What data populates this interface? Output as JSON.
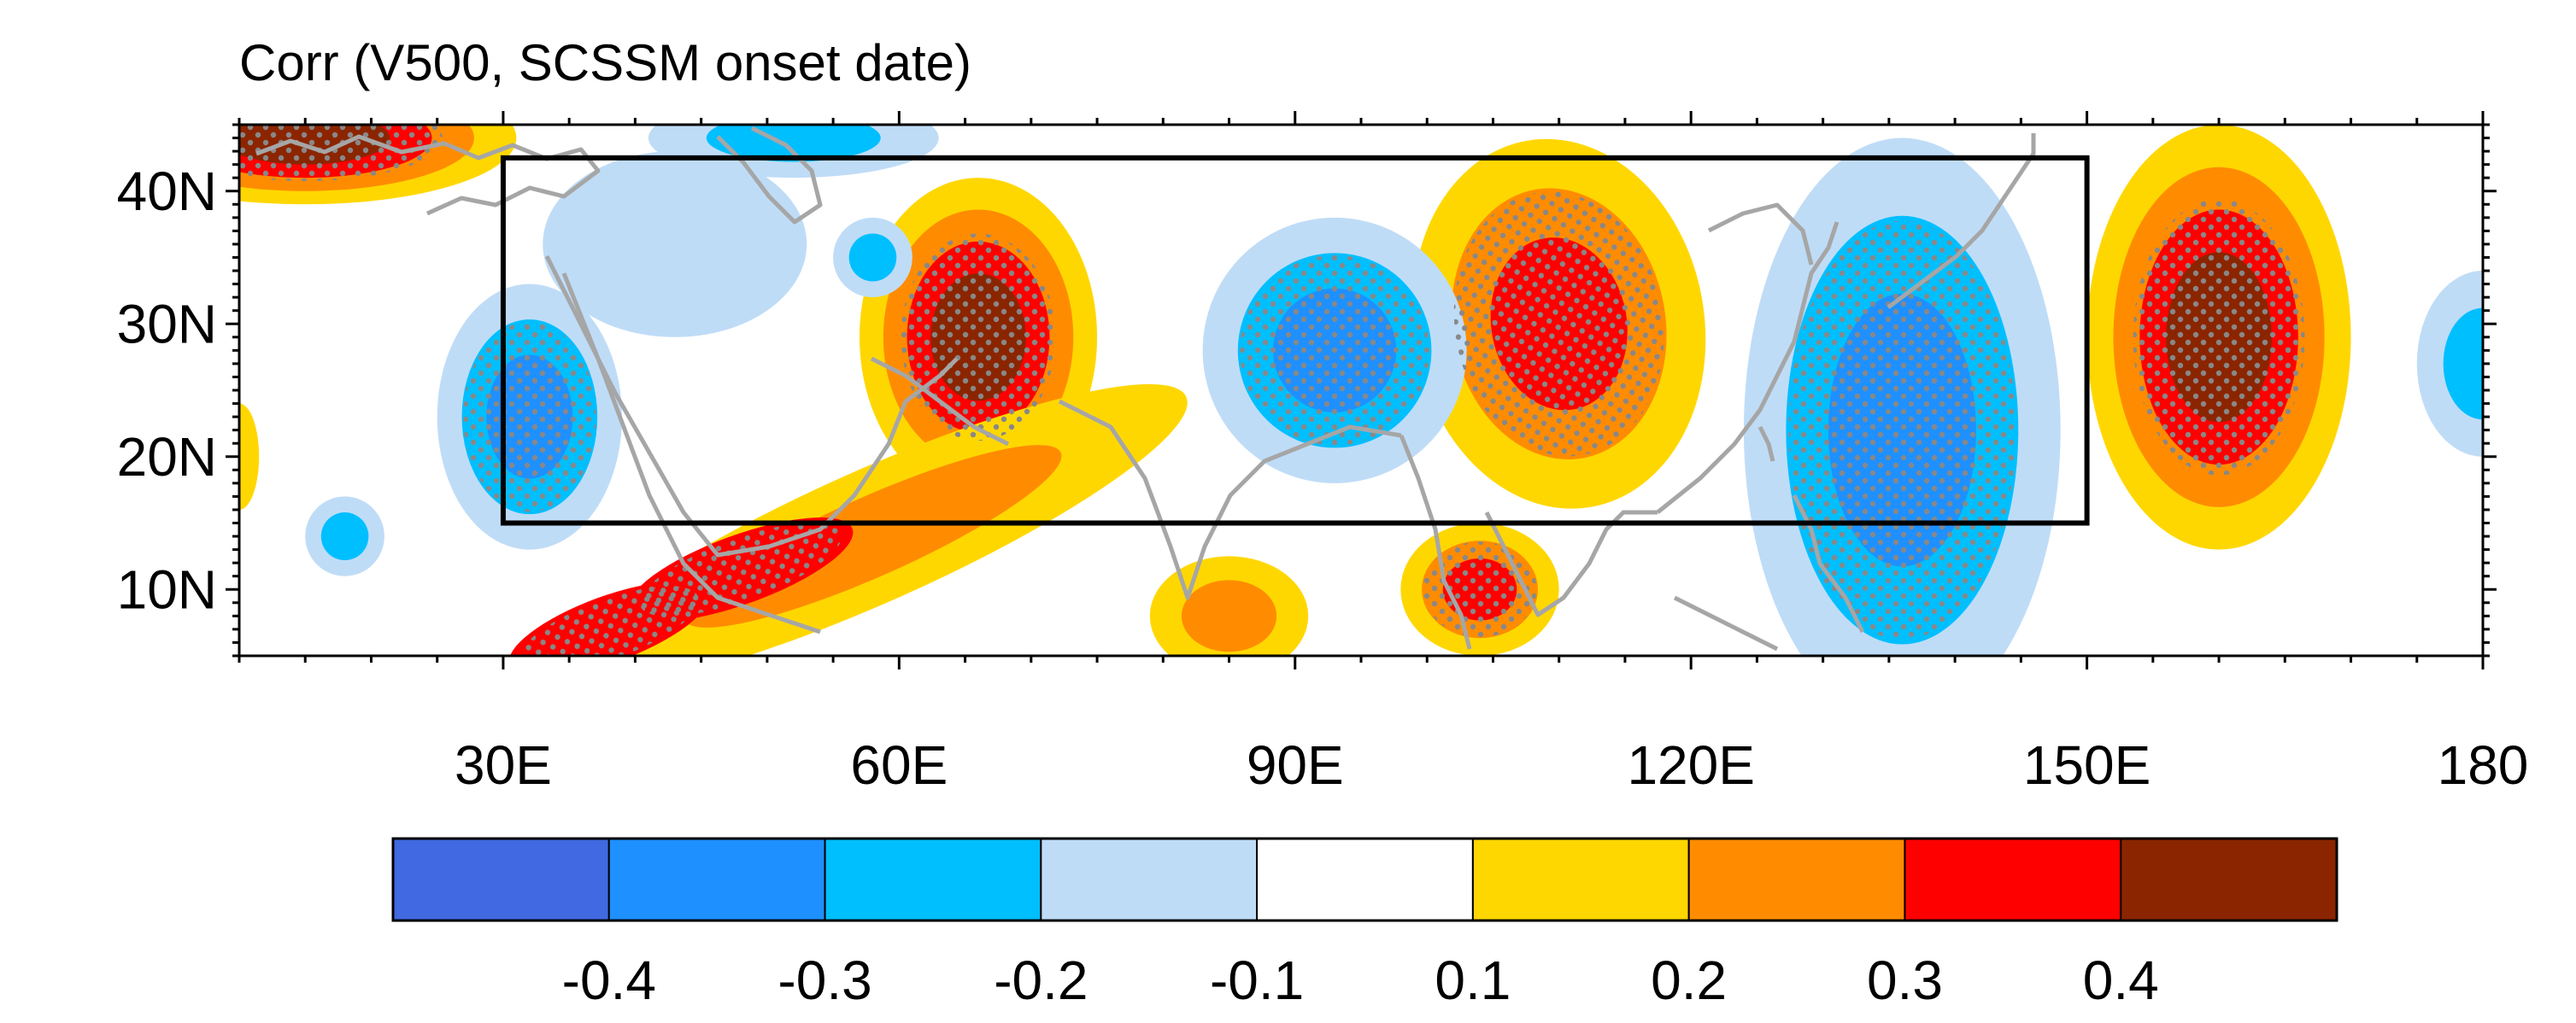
{
  "chart_data": {
    "type": "filled-contour-map",
    "title": "Corr (V500, SCSSM onset date)",
    "variable": "V500",
    "x_axis": {
      "range": [
        10,
        180
      ],
      "ticks": [
        {
          "value": 30,
          "label": "30E"
        },
        {
          "value": 60,
          "label": "60E"
        },
        {
          "value": 90,
          "label": "90E"
        },
        {
          "value": 120,
          "label": "120E"
        },
        {
          "value": 150,
          "label": "150E"
        },
        {
          "value": 180,
          "label": "180"
        }
      ]
    },
    "y_axis": {
      "range": [
        5,
        45
      ],
      "ticks": [
        {
          "value": 10,
          "label": "10N"
        },
        {
          "value": 20,
          "label": "20N"
        },
        {
          "value": 30,
          "label": "30N"
        },
        {
          "value": 40,
          "label": "40N"
        }
      ]
    },
    "target_box": {
      "lon_min": 30,
      "lon_max": 150,
      "lat_min": 15,
      "lat_max": 42.5
    },
    "colorbar": {
      "levels": [
        "-0.4",
        "-0.3",
        "-0.2",
        "-0.1",
        "0.1",
        "0.2",
        "0.3",
        "0.4"
      ],
      "colors": [
        "#4169e1",
        "#1e90ff",
        "#00bfff",
        "#bfdcf7",
        "#ffffff",
        "#ffd700",
        "#ff8c00",
        "#ff0000",
        "#8b2500"
      ]
    },
    "features": [
      {
        "lon": 15,
        "lat": 44,
        "rx": 16,
        "ry": 5,
        "bands": [
          0.1,
          0.2,
          0.3,
          0.4
        ],
        "stipple": true
      },
      {
        "lon": 10,
        "lat": 20,
        "rx": 1.5,
        "ry": 4,
        "bands": [
          0.1
        ],
        "stipple": false
      },
      {
        "lon": 66,
        "lat": 29,
        "rx": 9,
        "ry": 12,
        "bands": [
          0.1,
          0.2,
          0.3,
          0.4
        ],
        "stipple": true
      },
      {
        "lon": 58,
        "lat": 14,
        "rx": 26,
        "ry": 5,
        "rot": -24,
        "bands": [
          0.1,
          0.2
        ],
        "stipple": false
      },
      {
        "lon": 48,
        "lat": 11.5,
        "rx": 9,
        "ry": 2.6,
        "rot": -20,
        "bands": [
          0.3
        ],
        "stipple": true
      },
      {
        "lon": 38,
        "lat": 7,
        "rx": 8,
        "ry": 2.5,
        "rot": -20,
        "bands": [
          0.3
        ],
        "stipple": true
      },
      {
        "lon": 110,
        "lat": 30,
        "rx": 11,
        "ry": 14,
        "rot": -10,
        "bands": [
          0.1,
          0.2,
          0.3
        ],
        "stipple": true
      },
      {
        "lon": 104,
        "lat": 10,
        "rx": 6,
        "ry": 5,
        "bands": [
          0.1,
          0.2,
          0.3
        ],
        "stipple": true
      },
      {
        "lon": 85,
        "lat": 8,
        "rx": 6,
        "ry": 4.5,
        "bands": [
          0.1,
          0.2
        ],
        "stipple": false
      },
      {
        "lon": 160,
        "lat": 29,
        "rx": 10,
        "ry": 16,
        "bands": [
          0.1,
          0.2,
          0.3,
          0.4
        ],
        "stipple": true
      },
      {
        "lon": 32,
        "lat": 23,
        "rx": 7,
        "ry": 10,
        "bands": [
          -0.1,
          -0.2,
          -0.3
        ],
        "stipple": true
      },
      {
        "lon": 93,
        "lat": 28,
        "rx": 10,
        "ry": 10,
        "bands": [
          -0.1,
          -0.2,
          -0.3
        ],
        "stipple": true
      },
      {
        "lon": 136,
        "lat": 22,
        "rx": 12,
        "ry": 22,
        "bands": [
          -0.1,
          -0.2,
          -0.3
        ],
        "stipple": true
      },
      {
        "lon": 52,
        "lat": 44,
        "rx": 11,
        "ry": 3,
        "bands": [
          -0.1,
          -0.2
        ],
        "stipple": false
      },
      {
        "lon": 180,
        "lat": 27,
        "rx": 5,
        "ry": 7,
        "bands": [
          -0.1,
          -0.2
        ],
        "stipple": false
      },
      {
        "lon": 43,
        "lat": 36,
        "rx": 10,
        "ry": 7,
        "bands": [
          -0.1
        ],
        "stipple": false
      },
      {
        "lon": 58,
        "lat": 35,
        "rx": 3,
        "ry": 3,
        "bands": [
          -0.1,
          -0.2
        ],
        "stipple": false
      },
      {
        "lon": 18,
        "lat": 14,
        "rx": 3,
        "ry": 3,
        "bands": [
          -0.1,
          -0.2
        ],
        "stipple": false
      }
    ]
  }
}
